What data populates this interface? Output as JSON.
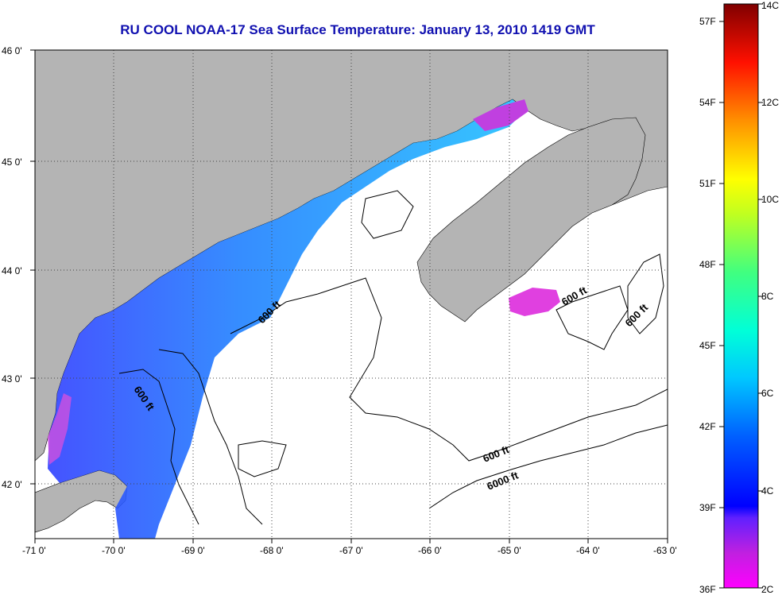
{
  "title": "RU COOL  NOAA-17  Sea Surface Temperature:  January 13, 2010 1419 GMT",
  "map": {
    "lon_ticks": [
      "-71 0'",
      "-70 0'",
      "-69 0'",
      "-68 0'",
      "-67 0'",
      "-66 0'",
      "-65 0'",
      "-64 0'",
      "-63 0'"
    ],
    "lat_ticks": [
      "46 0'",
      "45 0'",
      "44 0'",
      "43 0'",
      "42 0'"
    ],
    "depth_labels": [
      "600 ft",
      "600 ft",
      "600 ft",
      "600 ft",
      "600 ft",
      "6000 ft"
    ],
    "land_color": "#b4b4b4",
    "ocean_color": "#ffffff",
    "grid": "dotted"
  },
  "colorbar": {
    "fahrenheit_labels": [
      "57F",
      "54F",
      "51F",
      "48F",
      "45F",
      "42F",
      "39F",
      "36F"
    ],
    "celsius_labels": [
      "14C",
      "12C",
      "10C",
      "8C",
      "6C",
      "4C",
      "2C"
    ],
    "range_c": [
      2,
      14
    ]
  }
}
